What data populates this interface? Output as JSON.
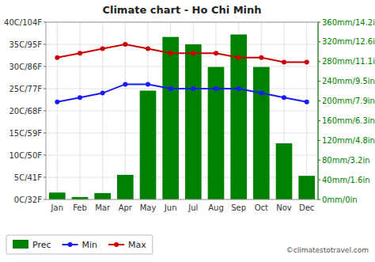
{
  "chart_data": {
    "type": "bar",
    "title": "Climate chart - Ho Chi Minh",
    "categories": [
      "Jan",
      "Feb",
      "Mar",
      "Apr",
      "May",
      "Jun",
      "Jul",
      "Aug",
      "Sep",
      "Oct",
      "Nov",
      "Dec"
    ],
    "series": [
      {
        "name": "Prec",
        "type": "bar",
        "axis": "y2",
        "color": "#008000",
        "values": [
          14,
          5,
          13,
          50,
          221,
          330,
          315,
          269,
          335,
          269,
          114,
          48
        ]
      },
      {
        "name": "Min",
        "type": "line",
        "marker": "circle",
        "color": "#1a1aff",
        "values": [
          22,
          23,
          24,
          26,
          26,
          25,
          25,
          25,
          25,
          24,
          23,
          22
        ]
      },
      {
        "name": "Max",
        "type": "line",
        "marker": "circle",
        "color": "#cc0000",
        "values": [
          32,
          33,
          34,
          35,
          34,
          33,
          33,
          33,
          32,
          32,
          31,
          31
        ]
      }
    ],
    "ylim": [
      0,
      40
    ],
    "yticks": [
      {
        "value": 0,
        "label": "0C/32F"
      },
      {
        "value": 5,
        "label": "5C/41F"
      },
      {
        "value": 10,
        "label": "10C/50F"
      },
      {
        "value": 15,
        "label": "15C/59F"
      },
      {
        "value": 20,
        "label": "20C/68F"
      },
      {
        "value": 25,
        "label": "25C/77F"
      },
      {
        "value": 30,
        "label": "30C/86F"
      },
      {
        "value": 35,
        "label": "35C/95F"
      },
      {
        "value": 40,
        "label": "40C/104F"
      }
    ],
    "y2lim": [
      0,
      360
    ],
    "y2ticks": [
      {
        "value": 0,
        "label": "0mm/0in"
      },
      {
        "value": 40,
        "label": "40mm/1.6in"
      },
      {
        "value": 80,
        "label": "80mm/3.2in"
      },
      {
        "value": 120,
        "label": "120mm/4.8in"
      },
      {
        "value": 160,
        "label": "160mm/6.3in"
      },
      {
        "value": 200,
        "label": "200mm/7.9in"
      },
      {
        "value": 240,
        "label": "240mm/9.5in"
      },
      {
        "value": 280,
        "label": "280mm/11.1in"
      },
      {
        "value": 320,
        "label": "320mm/12.6in"
      },
      {
        "value": 360,
        "label": "360mm/14.2in"
      }
    ],
    "grid": true,
    "legend": "bottom-left",
    "annotations": [
      "©climatestotravel.com"
    ]
  }
}
